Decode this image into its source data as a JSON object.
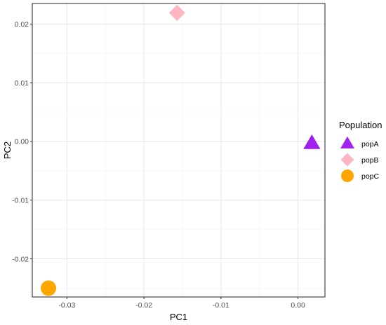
{
  "chart_data": {
    "type": "scatter",
    "xlabel": "PC1",
    "ylabel": "PC2",
    "xlim": [
      -0.0345,
      0.0035
    ],
    "ylim": [
      -0.0265,
      0.0235
    ],
    "x_ticks": [
      {
        "value": -0.03,
        "label": "-0.03"
      },
      {
        "value": -0.02,
        "label": "-0.02"
      },
      {
        "value": -0.01,
        "label": "-0.01"
      },
      {
        "value": 0.0,
        "label": "0.00"
      }
    ],
    "y_ticks": [
      {
        "value": 0.02,
        "label": "0.02"
      },
      {
        "value": 0.01,
        "label": "0.01"
      },
      {
        "value": 0.0,
        "label": "0.00"
      },
      {
        "value": -0.01,
        "label": "-0.01"
      },
      {
        "value": -0.02,
        "label": "-0.02"
      }
    ],
    "grid": true,
    "legend_title": "Population",
    "legend_position": "right",
    "series": [
      {
        "name": "popA",
        "shape": "triangle",
        "color": "#a020f0",
        "points": [
          {
            "x": 0.0018,
            "y": -0.0003
          }
        ]
      },
      {
        "name": "popB",
        "shape": "diamond",
        "color": "#ffb6c1",
        "points": [
          {
            "x": -0.0157,
            "y": 0.0219
          }
        ]
      },
      {
        "name": "popC",
        "shape": "circle",
        "color": "#ffa500",
        "points": [
          {
            "x": -0.0324,
            "y": -0.025
          }
        ]
      }
    ]
  }
}
